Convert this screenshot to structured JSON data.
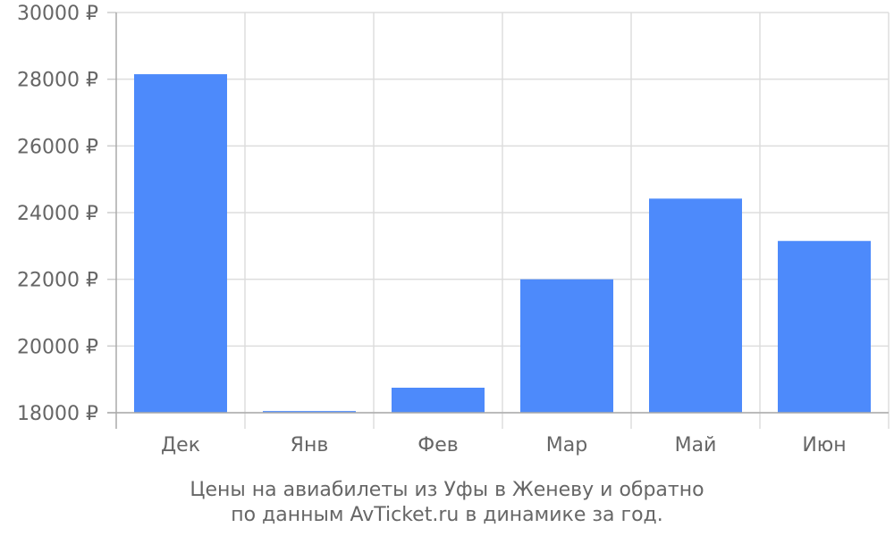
{
  "chart_data": {
    "type": "bar",
    "categories": [
      "Дек",
      "Янв",
      "Фев",
      "Мар",
      "Май",
      "Июн"
    ],
    "values": [
      28150,
      18050,
      18750,
      22000,
      24420,
      23150
    ],
    "ylim": [
      18000,
      30000
    ],
    "yticks": [
      18000,
      20000,
      22000,
      24000,
      26000,
      28000,
      30000
    ],
    "ytick_labels": [
      "18000 ₽",
      "20000 ₽",
      "22000 ₽",
      "24000 ₽",
      "26000 ₽",
      "28000 ₽",
      "30000 ₽"
    ],
    "grid": true,
    "bar_color": "#4d8afb",
    "caption_line1": "Цены на авиабилеты из Уфы в Женеву и обратно",
    "caption_line2": "по данным AvTicket.ru в динамике за год."
  }
}
